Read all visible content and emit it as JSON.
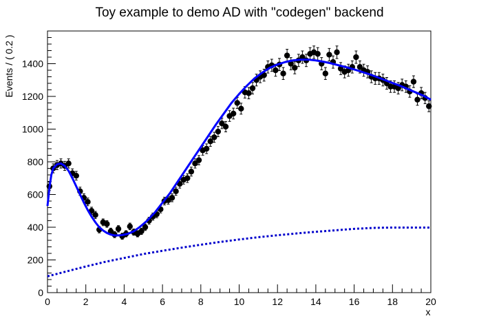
{
  "chart_data": {
    "type": "scatter",
    "title": "Toy example to demo AD with \"codegen\" backend",
    "xlabel": "x",
    "ylabel": "Events / ( 0.2 )",
    "xlim": [
      0,
      20
    ],
    "ylim": [
      0,
      1600
    ],
    "x_ticks": [
      0,
      2,
      4,
      6,
      8,
      10,
      12,
      14,
      16,
      18,
      20
    ],
    "y_ticks": [
      0,
      200,
      400,
      600,
      800,
      1000,
      1200,
      1400
    ],
    "grid": false,
    "legend": "none",
    "colors": {
      "data": "#000000",
      "fit": "#0000ff",
      "background": "#0000cc"
    },
    "series": [
      {
        "type": "errorbar-points",
        "x": [
          0.1,
          0.3,
          0.5,
          0.7,
          0.9,
          1.1,
          1.3,
          1.5,
          1.7,
          1.9,
          2.1,
          2.3,
          2.5,
          2.7,
          2.9,
          3.1,
          3.3,
          3.5,
          3.7,
          3.9,
          4.1,
          4.3,
          4.5,
          4.7,
          4.9,
          5.1,
          5.3,
          5.5,
          5.7,
          5.9,
          6.1,
          6.3,
          6.5,
          6.7,
          6.9,
          7.1,
          7.3,
          7.5,
          7.7,
          7.9,
          8.1,
          8.3,
          8.5,
          8.7,
          8.9,
          9.1,
          9.3,
          9.5,
          9.7,
          9.9,
          10.1,
          10.3,
          10.5,
          10.7,
          10.9,
          11.1,
          11.3,
          11.5,
          11.7,
          11.9,
          12.1,
          12.3,
          12.5,
          12.7,
          12.9,
          13.1,
          13.3,
          13.5,
          13.7,
          13.9,
          14.1,
          14.3,
          14.5,
          14.7,
          14.9,
          15.1,
          15.3,
          15.5,
          15.7,
          15.9,
          16.1,
          16.3,
          16.5,
          16.7,
          16.9,
          17.1,
          17.3,
          17.5,
          17.7,
          17.9,
          18.1,
          18.3,
          18.5,
          18.7,
          18.9,
          19.1,
          19.3,
          19.5,
          19.7,
          19.9
        ],
        "values": [
          650,
          760,
          780,
          790,
          775,
          790,
          730,
          715,
          620,
          580,
          555,
          500,
          475,
          385,
          430,
          420,
          375,
          355,
          390,
          345,
          360,
          405,
          370,
          360,
          375,
          400,
          440,
          465,
          480,
          510,
          560,
          565,
          580,
          620,
          665,
          690,
          700,
          740,
          790,
          810,
          870,
          880,
          925,
          950,
          985,
          1035,
          1015,
          1080,
          1095,
          1160,
          1125,
          1225,
          1220,
          1250,
          1300,
          1320,
          1330,
          1380,
          1390,
          1360,
          1395,
          1340,
          1450,
          1400,
          1375,
          1420,
          1440,
          1420,
          1460,
          1470,
          1460,
          1400,
          1340,
          1455,
          1410,
          1470,
          1370,
          1350,
          1360,
          1380,
          1440,
          1380,
          1360,
          1350,
          1320,
          1310,
          1310,
          1300,
          1280,
          1260,
          1260,
          1250,
          1270,
          1260,
          1230,
          1290,
          1180,
          1220,
          1190,
          1140
        ],
        "name": ""
      },
      {
        "type": "line",
        "x": [
          0,
          0.1,
          0.2,
          0.3,
          0.5,
          0.7,
          0.9,
          1.1,
          1.3,
          1.5,
          1.7,
          1.9,
          2.1,
          2.3,
          2.5,
          2.7,
          2.9,
          3.1,
          3.3,
          3.5,
          3.7,
          3.9,
          4.2,
          4.5,
          4.8,
          5.2,
          5.6,
          6,
          6.4,
          6.8,
          7.2,
          7.6,
          8,
          8.4,
          8.8,
          9.2,
          9.6,
          10,
          10.4,
          10.8,
          11.2,
          11.6,
          12,
          12.4,
          12.8,
          13.2,
          13.6,
          14,
          14.4,
          14.8,
          15.2,
          15.6,
          16,
          16.4,
          16.8,
          17.2,
          17.6,
          18,
          18.4,
          18.8,
          19.2,
          19.6,
          20
        ],
        "values": [
          530,
          640,
          720,
          760,
          785,
          790,
          775,
          745,
          700,
          650,
          600,
          550,
          505,
          465,
          430,
          400,
          380,
          365,
          355,
          350,
          350,
          352,
          360,
          375,
          400,
          440,
          490,
          550,
          610,
          680,
          750,
          820,
          890,
          960,
          1030,
          1095,
          1160,
          1215,
          1265,
          1310,
          1345,
          1375,
          1395,
          1410,
          1420,
          1425,
          1425,
          1420,
          1412,
          1402,
          1390,
          1378,
          1365,
          1350,
          1335,
          1318,
          1300,
          1282,
          1265,
          1245,
          1225,
          1205,
          1180
        ],
        "name": ""
      },
      {
        "type": "line",
        "x": [
          0,
          1,
          2,
          3,
          4,
          5,
          6,
          7,
          8,
          9,
          10,
          11,
          12,
          13,
          14,
          15,
          16,
          17,
          18,
          19,
          20
        ],
        "values": [
          100,
          130,
          160,
          188,
          212,
          236,
          256,
          275,
          293,
          310,
          325,
          339,
          351,
          362,
          372,
          381,
          390,
          396,
          398,
          398,
          398
        ],
        "name": ""
      }
    ]
  }
}
